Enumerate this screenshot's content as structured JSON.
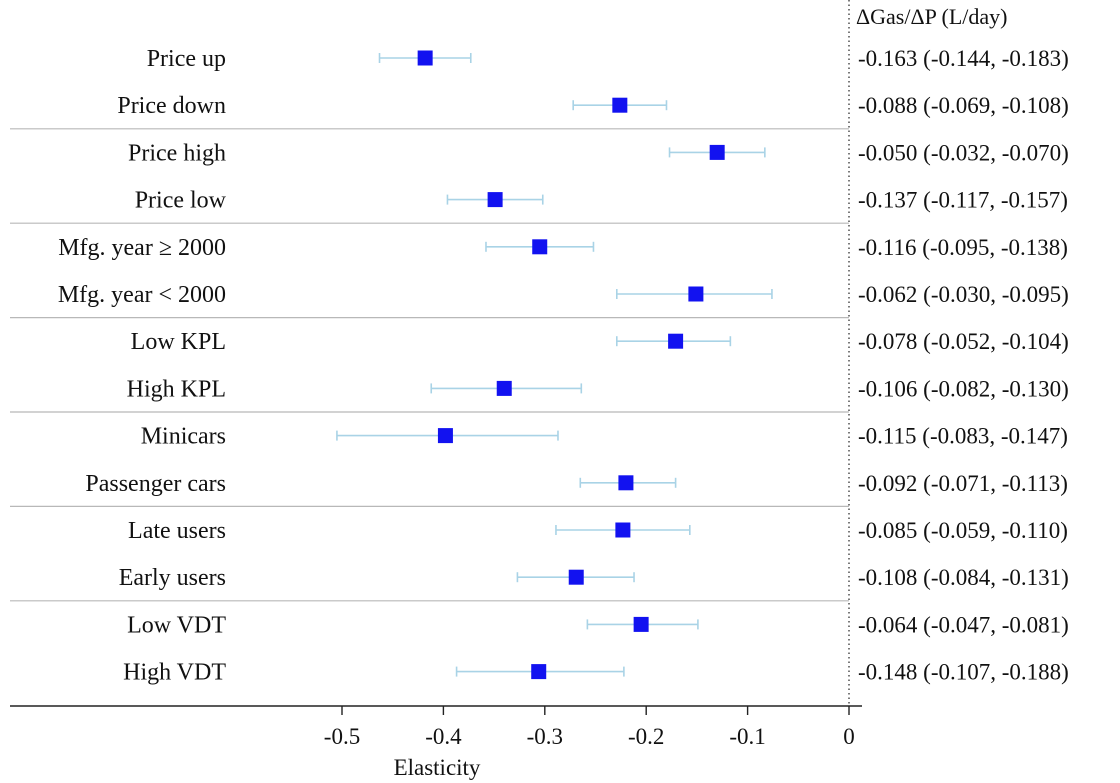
{
  "chart_data": {
    "type": "forest",
    "xlabel": "Elasticity",
    "right_header": "ΔGas/ΔP (L/day)",
    "xlim": [
      -0.5,
      0
    ],
    "xticks": [
      "-0.5",
      "-0.4",
      "-0.3",
      "-0.2",
      "-0.1",
      "0"
    ],
    "reference_line_x": 0,
    "colors": {
      "marker": "#1212f0",
      "ci": "#a9d3e6",
      "separator": "#b8b8b8",
      "axis": "#222222"
    },
    "rows": [
      {
        "label": "Price up",
        "elasticity": -0.418,
        "ci": [
          -0.463,
          -0.373
        ],
        "value_text": "-0.163 (-0.144, -0.183)",
        "group": 0
      },
      {
        "label": "Price down",
        "elasticity": -0.226,
        "ci": [
          -0.272,
          -0.18
        ],
        "value_text": "-0.088 (-0.069, -0.108)",
        "group": 0
      },
      {
        "label": "Price high",
        "elasticity": -0.13,
        "ci": [
          -0.177,
          -0.083
        ],
        "value_text": "-0.050 (-0.032, -0.070)",
        "group": 1
      },
      {
        "label": "Price low",
        "elasticity": -0.349,
        "ci": [
          -0.396,
          -0.302
        ],
        "value_text": "-0.137 (-0.117, -0.157)",
        "group": 1
      },
      {
        "label": "Mfg. year ≥ 2000",
        "elasticity": -0.305,
        "ci": [
          -0.358,
          -0.252
        ],
        "value_text": "-0.116 (-0.095, -0.138)",
        "group": 2
      },
      {
        "label": "Mfg. year < 2000",
        "elasticity": -0.151,
        "ci": [
          -0.229,
          -0.076
        ],
        "value_text": "-0.062 (-0.030, -0.095)",
        "group": 2
      },
      {
        "label": "Low KPL",
        "elasticity": -0.171,
        "ci": [
          -0.229,
          -0.117
        ],
        "value_text": "-0.078 (-0.052, -0.104)",
        "group": 3
      },
      {
        "label": "High KPL",
        "elasticity": -0.34,
        "ci": [
          -0.412,
          -0.264
        ],
        "value_text": "-0.106 (-0.082, -0.130)",
        "group": 3
      },
      {
        "label": "Minicars",
        "elasticity": -0.398,
        "ci": [
          -0.505,
          -0.287
        ],
        "value_text": "-0.115 (-0.083, -0.147)",
        "group": 4
      },
      {
        "label": "Passenger cars",
        "elasticity": -0.22,
        "ci": [
          -0.265,
          -0.171
        ],
        "value_text": "-0.092 (-0.071, -0.113)",
        "group": 4
      },
      {
        "label": "Late users",
        "elasticity": -0.223,
        "ci": [
          -0.289,
          -0.157
        ],
        "value_text": "-0.085 (-0.059, -0.110)",
        "group": 5
      },
      {
        "label": "Early users",
        "elasticity": -0.269,
        "ci": [
          -0.327,
          -0.212
        ],
        "value_text": "-0.108 (-0.084, -0.131)",
        "group": 5
      },
      {
        "label": "Low VDT",
        "elasticity": -0.205,
        "ci": [
          -0.258,
          -0.149
        ],
        "value_text": "-0.064 (-0.047, -0.081)",
        "group": 6
      },
      {
        "label": "High VDT",
        "elasticity": -0.306,
        "ci": [
          -0.387,
          -0.222
        ],
        "value_text": "-0.148 (-0.107, -0.188)",
        "group": 6
      }
    ]
  }
}
